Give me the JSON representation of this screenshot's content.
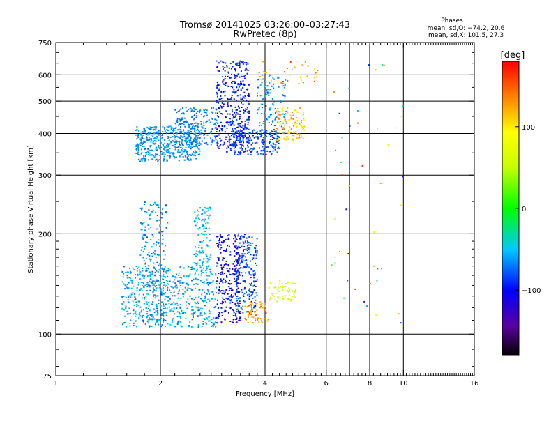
{
  "chart_data": {
    "type": "scatter",
    "title": "Tromsø 20141025 03:26:00–03:27:43",
    "subtitle": "RwPretec (8p)",
    "xlabel": "Frequency [MHz]",
    "ylabel": "Stationary phase Virtual Height [km]",
    "x_scale": "log",
    "y_scale": "log",
    "xlim": [
      1,
      16
    ],
    "ylim": [
      75,
      750
    ],
    "x_ticks": [
      1,
      2,
      4,
      6,
      8,
      10,
      16
    ],
    "x_tick_labels": [
      "1",
      "2",
      "4",
      "6",
      "8",
      "10",
      "16"
    ],
    "x_gridlines": [
      2,
      4,
      6,
      7,
      8,
      10
    ],
    "y_ticks": [
      75,
      100,
      200,
      300,
      400,
      500,
      600,
      750
    ],
    "y_tick_labels": [
      "75",
      "100",
      "200",
      "300",
      "400",
      "500",
      "600",
      "750"
    ],
    "y_gridlines": [
      100,
      200,
      300,
      400,
      500,
      600
    ],
    "grid": true,
    "phase_stats": {
      "title": "Phases",
      "line1": "mean, sd,O: −74.2, 20.6",
      "line2": "mean, sd,X: 101.5, 27.3"
    },
    "colorbar": {
      "label": "[deg]",
      "range": [
        -180,
        180
      ],
      "ticks": [
        100,
        0,
        -100
      ],
      "tick_labels": [
        "100",
        "0",
        "−100"
      ],
      "colormap": "rainbow"
    },
    "clusters": [
      {
        "f": [
          1.7,
          2.6
        ],
        "h": [
          330,
          420
        ],
        "ph": [
          -75,
          -55
        ],
        "n": 480
      },
      {
        "f": [
          2.2,
          2.9
        ],
        "h": [
          370,
          480
        ],
        "ph": [
          -80,
          -60
        ],
        "n": 200
      },
      {
        "f": [
          2.9,
          3.6
        ],
        "h": [
          360,
          660
        ],
        "ph": [
          -110,
          -80
        ],
        "n": 360
      },
      {
        "f": [
          3.1,
          4.4
        ],
        "h": [
          345,
          410
        ],
        "ph": [
          -100,
          -70
        ],
        "n": 220
      },
      {
        "f": [
          3.8,
          4.6
        ],
        "h": [
          400,
          600
        ],
        "ph": [
          -80,
          -50
        ],
        "n": 120
      },
      {
        "f": [
          4.3,
          5.2
        ],
        "h": [
          380,
          480
        ],
        "ph": [
          80,
          140
        ],
        "n": 110
      },
      {
        "f": [
          3.8,
          5.8
        ],
        "h": [
          560,
          660
        ],
        "ph": [
          100,
          160
        ],
        "n": 40
      },
      {
        "f": [
          1.75,
          2.1
        ],
        "h": [
          105,
          250
        ],
        "ph": [
          -80,
          -50
        ],
        "n": 240
      },
      {
        "f": [
          1.55,
          2.9
        ],
        "h": [
          105,
          160
        ],
        "ph": [
          -75,
          -45
        ],
        "n": 520
      },
      {
        "f": [
          2.5,
          2.8
        ],
        "h": [
          150,
          240
        ],
        "ph": [
          -70,
          -40
        ],
        "n": 120
      },
      {
        "f": [
          2.9,
          3.4
        ],
        "h": [
          108,
          200
        ],
        "ph": [
          -120,
          -90
        ],
        "n": 260
      },
      {
        "f": [
          3.3,
          3.8
        ],
        "h": [
          115,
          200
        ],
        "ph": [
          -100,
          -70
        ],
        "n": 220
      },
      {
        "f": [
          3.5,
          4.1
        ],
        "h": [
          108,
          125
        ],
        "ph": [
          110,
          150
        ],
        "n": 60
      },
      {
        "f": [
          4.1,
          4.9
        ],
        "h": [
          125,
          145
        ],
        "ph": [
          40,
          80
        ],
        "n": 60
      },
      {
        "f": [
          6.0,
          10.0
        ],
        "h": [
          100,
          660
        ],
        "ph": [
          -120,
          180
        ],
        "n": 45
      }
    ]
  }
}
